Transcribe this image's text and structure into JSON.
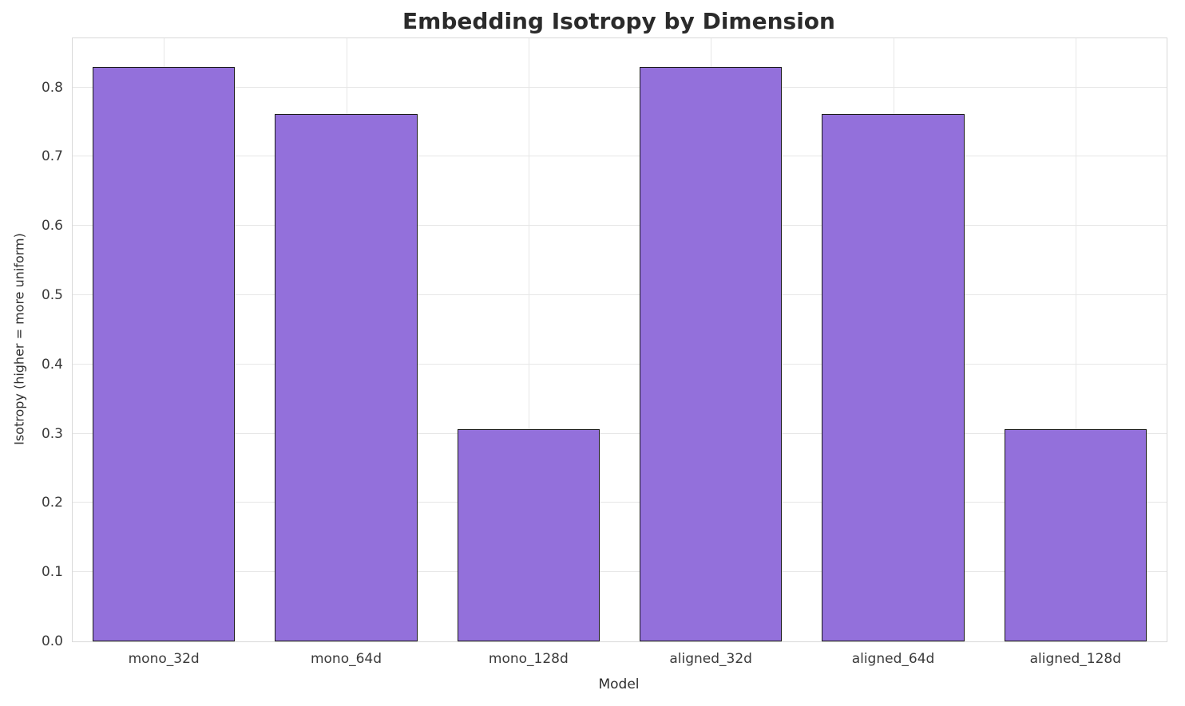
{
  "chart_data": {
    "type": "bar",
    "title": "Embedding Isotropy by Dimension",
    "xlabel": "Model",
    "ylabel": "Isotropy (higher = more uniform)",
    "categories": [
      "mono_32d",
      "mono_64d",
      "mono_128d",
      "aligned_32d",
      "aligned_64d",
      "aligned_128d"
    ],
    "values": [
      0.829,
      0.761,
      0.306,
      0.829,
      0.761,
      0.306
    ],
    "ylim": [
      0,
      0.871
    ],
    "yticks": [
      0.0,
      0.1,
      0.2,
      0.3,
      0.4,
      0.5,
      0.6,
      0.7,
      0.8
    ],
    "grid": true,
    "legend_position": "none",
    "bar_color": "#9370DB",
    "bar_edge_color": "#1a1a1a",
    "bar_width_fraction": 0.78
  }
}
